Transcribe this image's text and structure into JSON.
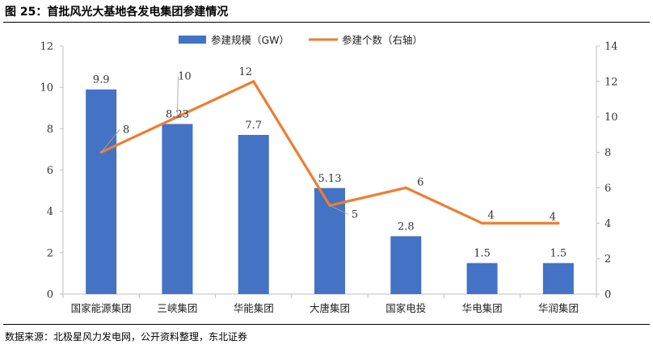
{
  "figure": {
    "title": "图 25：首批风光大基地各发电集团参建情况",
    "source": "数据来源：北极星风力发电网，公开资料整理，东北证券"
  },
  "chart_data": {
    "type": "bar",
    "categories": [
      "国家能源集团",
      "三峡集团",
      "华能集团",
      "大唐集团",
      "国家电投",
      "华电集团",
      "华润集团"
    ],
    "series": [
      {
        "name": "参建规模（GW）",
        "type": "bar",
        "axis": "left",
        "color": "#4472C4",
        "values": [
          9.9,
          8.23,
          7.7,
          5.13,
          2.8,
          1.5,
          1.5
        ],
        "labels": [
          "9.9",
          "8.23",
          "7.7",
          "5.13",
          "2.8",
          "1.5",
          "1.5"
        ]
      },
      {
        "name": "参建个数（右轴）",
        "type": "line",
        "axis": "right",
        "color": "#ED7D31",
        "values": [
          8,
          10,
          12,
          5,
          6,
          4,
          4
        ],
        "labels": [
          "8",
          "10",
          "12",
          "5",
          "6",
          "4",
          "4"
        ]
      }
    ],
    "y_left": {
      "min": 0,
      "max": 12,
      "ticks": [
        0,
        2,
        4,
        6,
        8,
        10,
        12
      ]
    },
    "y_right": {
      "min": 0,
      "max": 14,
      "ticks": [
        0,
        2,
        4,
        6,
        8,
        10,
        12,
        14
      ]
    },
    "legend_position": "top-center",
    "grid": false
  }
}
